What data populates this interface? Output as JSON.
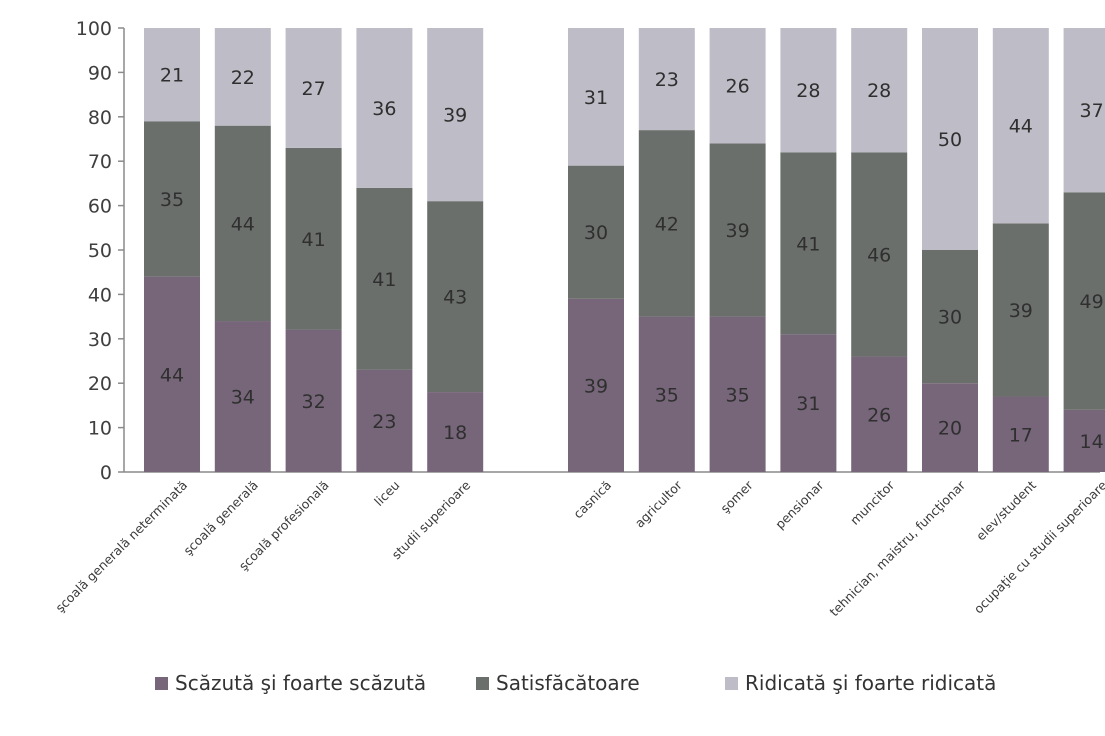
{
  "chart_data": {
    "type": "bar",
    "stacked": true,
    "title": "",
    "xlabel": "",
    "ylabel": "",
    "ylim": [
      0,
      100
    ],
    "yticks": [
      0,
      10,
      20,
      30,
      40,
      50,
      60,
      70,
      80,
      90,
      100
    ],
    "grid": false,
    "legend": "bottom",
    "groups": [
      {
        "categories": [
          "şcoală generală neterminată",
          "şcoală generală",
          "şcoală profesională",
          "liceu",
          "studii superioare"
        ]
      },
      {
        "categories": [
          "casnică",
          "agricultor",
          "şomer",
          "pensionar",
          "muncitor",
          "tehnician, maistru, funcţionar",
          "elev/student",
          "ocupaţie cu studii superioare"
        ]
      }
    ],
    "series": [
      {
        "name": "Scăzută şi foarte scăzută",
        "color": "#77667a",
        "values": [
          44,
          34,
          32,
          23,
          18,
          39,
          35,
          35,
          31,
          26,
          20,
          17,
          14
        ]
      },
      {
        "name": "Satisfăcătoare",
        "color": "#6b6f6c",
        "values": [
          35,
          44,
          41,
          41,
          43,
          30,
          42,
          39,
          41,
          46,
          30,
          39,
          49
        ]
      },
      {
        "name": "Ridicată şi foarte ridicată",
        "color": "#bdbcc7",
        "values": [
          21,
          22,
          27,
          36,
          39,
          31,
          23,
          26,
          28,
          28,
          50,
          44,
          37
        ]
      }
    ]
  }
}
